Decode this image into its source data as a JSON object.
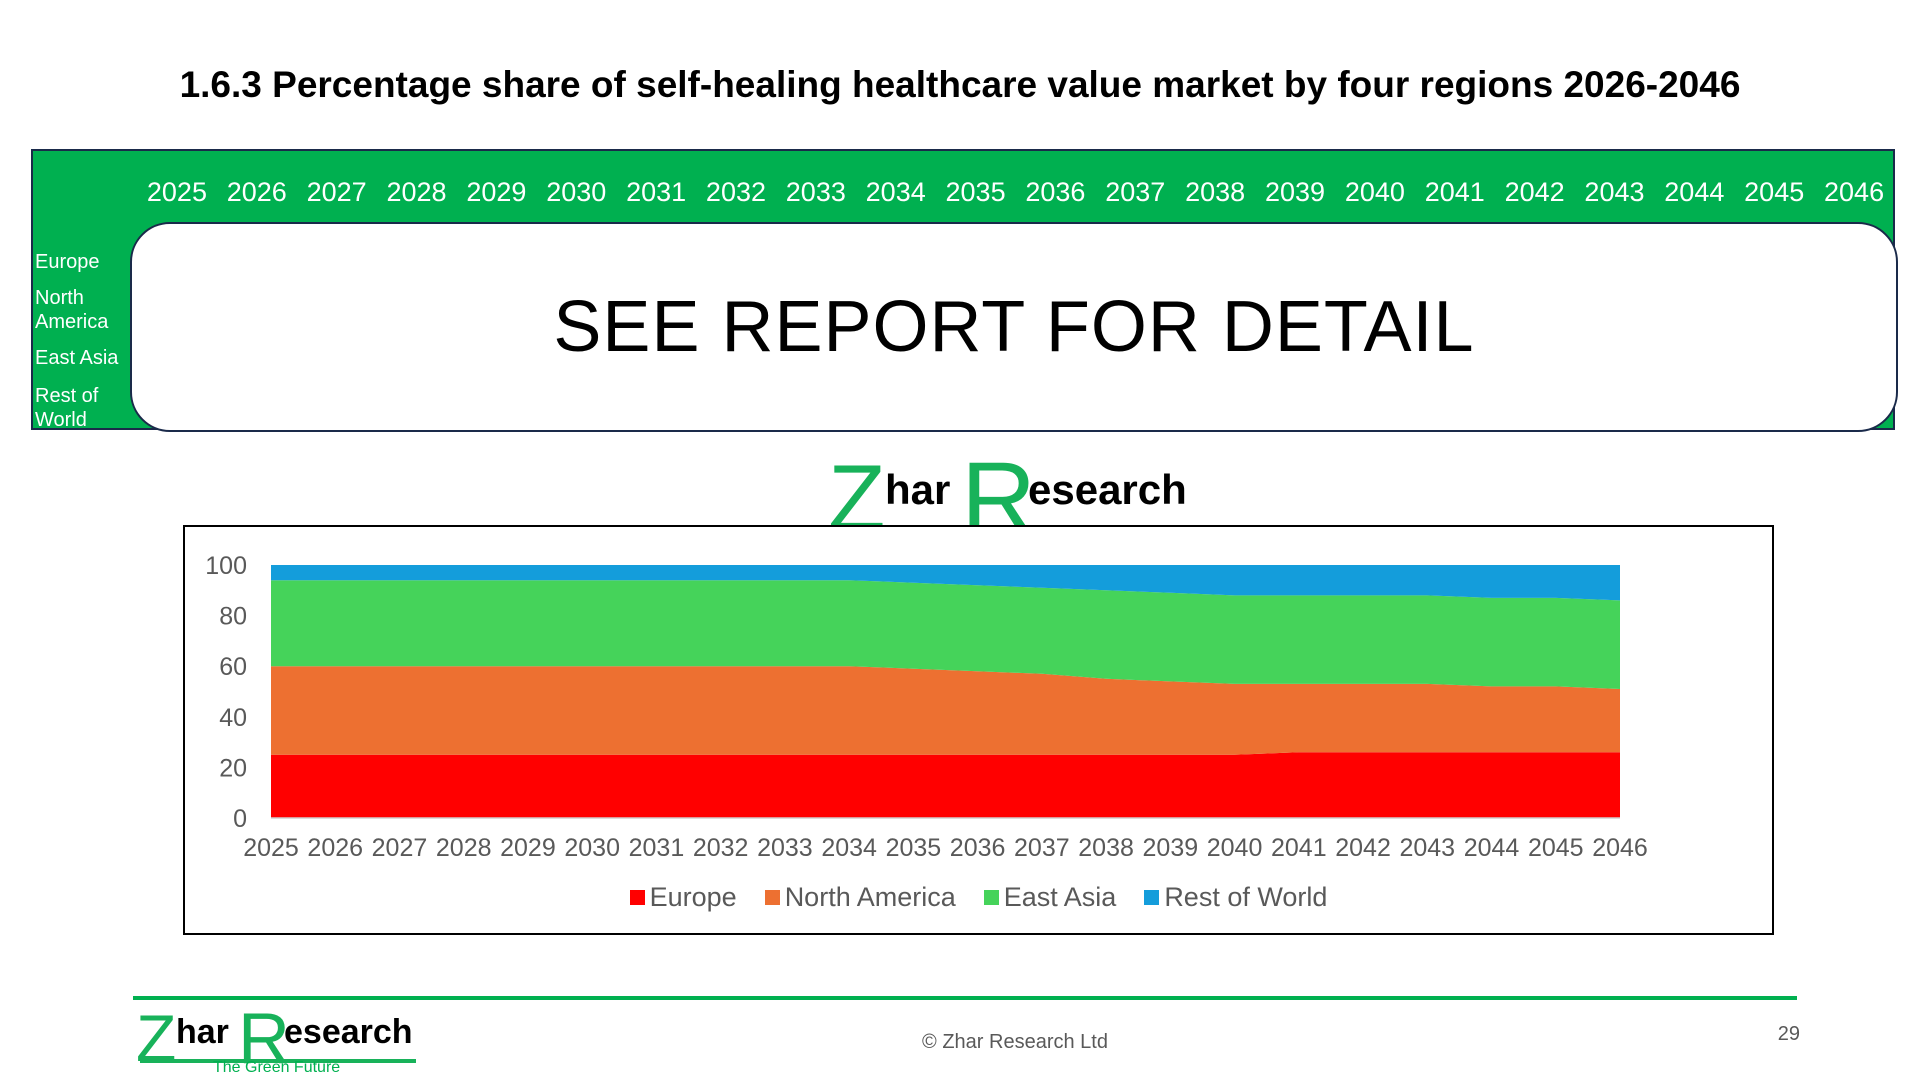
{
  "title": "1.6.3 Percentage share of self-healing healthcare value market by four regions 2026-2046",
  "table": {
    "years": [
      "2025",
      "2026",
      "2027",
      "2028",
      "2029",
      "2030",
      "2031",
      "2032",
      "2033",
      "2034",
      "2035",
      "2036",
      "2037",
      "2038",
      "2039",
      "2040",
      "2041",
      "2042",
      "2043",
      "2044",
      "2045",
      "2046"
    ],
    "regions": [
      "Europe",
      "North America",
      "East Asia",
      "Rest of World"
    ],
    "notice": "SEE REPORT FOR DETAIL"
  },
  "logo": {
    "text_z": "Z",
    "text_har": "har",
    "text_r": "R",
    "text_esearch": "esearch",
    "tagline": "The Green Future"
  },
  "colors": {
    "green": "#00B050",
    "europe": "#FF0000",
    "north_america": "#ED7031",
    "east_asia": "#45D35A",
    "rest_of_world": "#149DDB"
  },
  "footer": {
    "copyright": "© Zhar Research Ltd",
    "page_number": "29"
  },
  "chart_data": {
    "type": "area",
    "stacked": true,
    "title": "",
    "xlabel": "",
    "ylabel": "",
    "ylim": [
      0,
      100
    ],
    "yticks": [
      0,
      20,
      40,
      60,
      80,
      100
    ],
    "x": [
      "2025",
      "2026",
      "2027",
      "2028",
      "2029",
      "2030",
      "2031",
      "2032",
      "2033",
      "2034",
      "2035",
      "2036",
      "2037",
      "2038",
      "2039",
      "2040",
      "2041",
      "2042",
      "2043",
      "2044",
      "2045",
      "2046"
    ],
    "legend_position": "bottom",
    "series": [
      {
        "name": "Europe",
        "color": "#FF0000",
        "values": [
          25,
          25,
          25,
          25,
          25,
          25,
          25,
          25,
          25,
          25,
          25,
          25,
          25,
          25,
          25,
          25,
          26,
          26,
          26,
          26,
          26,
          26
        ]
      },
      {
        "name": "North America",
        "color": "#ED7031",
        "values": [
          35,
          35,
          35,
          35,
          35,
          35,
          35,
          35,
          35,
          35,
          34,
          33,
          32,
          30,
          29,
          28,
          27,
          27,
          27,
          26,
          26,
          25
        ]
      },
      {
        "name": "East Asia",
        "color": "#45D35A",
        "values": [
          34,
          34,
          34,
          34,
          34,
          34,
          34,
          34,
          34,
          34,
          34,
          34,
          34,
          35,
          35,
          35,
          35,
          35,
          35,
          35,
          35,
          35
        ]
      },
      {
        "name": "Rest of World",
        "color": "#149DDB",
        "values": [
          6,
          6,
          6,
          6,
          6,
          6,
          6,
          6,
          6,
          6,
          7,
          8,
          9,
          10,
          11,
          12,
          12,
          12,
          12,
          13,
          13,
          14
        ]
      }
    ]
  }
}
